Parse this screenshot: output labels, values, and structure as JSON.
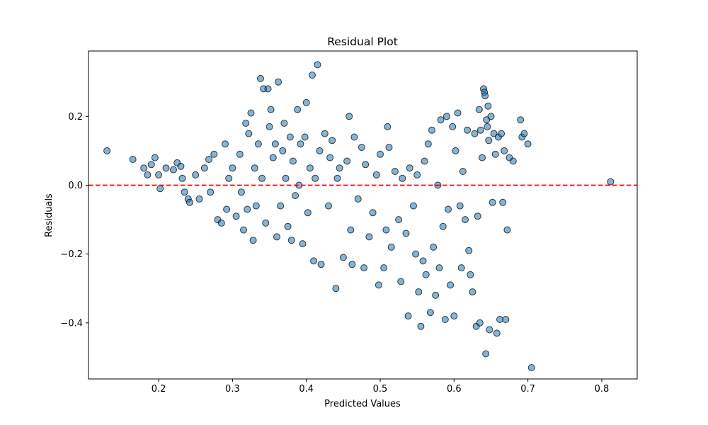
{
  "chart_data": {
    "type": "scatter",
    "title": "Residual Plot",
    "xlabel": "Predicted Values",
    "ylabel": "Residuals",
    "xlim": [
      0.105,
      0.848
    ],
    "ylim": [
      -0.563,
      0.39
    ],
    "xticks": [
      0.2,
      0.3,
      0.4,
      0.5,
      0.6,
      0.7,
      0.8
    ],
    "xtick_labels": [
      "0.2",
      "0.3",
      "0.4",
      "0.5",
      "0.6",
      "0.7",
      "0.8"
    ],
    "yticks": [
      -0.4,
      -0.2,
      0.0,
      0.2
    ],
    "ytick_labels": [
      "−0.4",
      "−0.2",
      "0.0",
      "0.2"
    ],
    "reference_line": {
      "y": 0.0,
      "style": "dashed",
      "color": "#ff0000"
    },
    "marker_color": "#1f77b4",
    "marker_edge_color": "#000000",
    "marker_alpha": 0.55,
    "grid": false,
    "legend": "none",
    "series": [
      {
        "points": [
          [
            0.13,
            0.1
          ],
          [
            0.165,
            0.075
          ],
          [
            0.18,
            0.05
          ],
          [
            0.185,
            0.03
          ],
          [
            0.19,
            0.06
          ],
          [
            0.195,
            0.08
          ],
          [
            0.2,
            0.03
          ],
          [
            0.202,
            -0.01
          ],
          [
            0.21,
            0.05
          ],
          [
            0.22,
            0.045
          ],
          [
            0.225,
            0.065
          ],
          [
            0.23,
            0.055
          ],
          [
            0.232,
            0.02
          ],
          [
            0.235,
            -0.02
          ],
          [
            0.24,
            -0.04
          ],
          [
            0.242,
            -0.05
          ],
          [
            0.25,
            0.03
          ],
          [
            0.255,
            -0.04
          ],
          [
            0.262,
            0.05
          ],
          [
            0.268,
            0.075
          ],
          [
            0.27,
            -0.02
          ],
          [
            0.275,
            0.09
          ],
          [
            0.28,
            -0.1
          ],
          [
            0.285,
            -0.11
          ],
          [
            0.29,
            0.12
          ],
          [
            0.292,
            -0.07
          ],
          [
            0.295,
            0.02
          ],
          [
            0.3,
            0.05
          ],
          [
            0.305,
            -0.09
          ],
          [
            0.31,
            0.09
          ],
          [
            0.312,
            -0.02
          ],
          [
            0.315,
            -0.13
          ],
          [
            0.318,
            0.18
          ],
          [
            0.32,
            -0.07
          ],
          [
            0.322,
            0.15
          ],
          [
            0.325,
            0.21
          ],
          [
            0.328,
            -0.16
          ],
          [
            0.33,
            0.05
          ],
          [
            0.332,
            -0.06
          ],
          [
            0.335,
            0.12
          ],
          [
            0.338,
            0.31
          ],
          [
            0.34,
            0.02
          ],
          [
            0.342,
            0.28
          ],
          [
            0.345,
            -0.11
          ],
          [
            0.348,
            0.28
          ],
          [
            0.35,
            0.17
          ],
          [
            0.352,
            0.22
          ],
          [
            0.355,
            0.08
          ],
          [
            0.358,
            0.12
          ],
          [
            0.36,
            -0.15
          ],
          [
            0.362,
            0.3
          ],
          [
            0.365,
            -0.06
          ],
          [
            0.368,
            0.1
          ],
          [
            0.37,
            0.18
          ],
          [
            0.372,
            0.02
          ],
          [
            0.375,
            -0.12
          ],
          [
            0.378,
            0.14
          ],
          [
            0.38,
            -0.16
          ],
          [
            0.382,
            0.07
          ],
          [
            0.385,
            -0.03
          ],
          [
            0.388,
            0.22
          ],
          [
            0.39,
            0.0
          ],
          [
            0.392,
            0.12
          ],
          [
            0.395,
            -0.17
          ],
          [
            0.398,
            0.14
          ],
          [
            0.4,
            0.24
          ],
          [
            0.402,
            -0.08
          ],
          [
            0.405,
            0.05
          ],
          [
            0.408,
            0.32
          ],
          [
            0.41,
            -0.22
          ],
          [
            0.412,
            0.02
          ],
          [
            0.415,
            0.35
          ],
          [
            0.418,
            0.1
          ],
          [
            0.42,
            -0.23
          ],
          [
            0.425,
            0.15
          ],
          [
            0.43,
            -0.06
          ],
          [
            0.432,
            0.08
          ],
          [
            0.435,
            0.13
          ],
          [
            0.44,
            -0.3
          ],
          [
            0.442,
            0.02
          ],
          [
            0.445,
            0.05
          ],
          [
            0.45,
            -0.21
          ],
          [
            0.455,
            0.07
          ],
          [
            0.458,
            0.2
          ],
          [
            0.46,
            -0.13
          ],
          [
            0.462,
            -0.23
          ],
          [
            0.465,
            0.14
          ],
          [
            0.47,
            -0.04
          ],
          [
            0.475,
            0.11
          ],
          [
            0.478,
            -0.24
          ],
          [
            0.48,
            0.06
          ],
          [
            0.485,
            -0.15
          ],
          [
            0.49,
            -0.08
          ],
          [
            0.495,
            0.03
          ],
          [
            0.498,
            -0.29
          ],
          [
            0.5,
            0.09
          ],
          [
            0.505,
            -0.24
          ],
          [
            0.508,
            -0.13
          ],
          [
            0.51,
            0.17
          ],
          [
            0.512,
            0.11
          ],
          [
            0.515,
            -0.18
          ],
          [
            0.52,
            0.04
          ],
          [
            0.525,
            -0.1
          ],
          [
            0.528,
            -0.28
          ],
          [
            0.53,
            0.02
          ],
          [
            0.535,
            -0.14
          ],
          [
            0.538,
            -0.38
          ],
          [
            0.54,
            0.05
          ],
          [
            0.545,
            -0.06
          ],
          [
            0.548,
            -0.2
          ],
          [
            0.55,
            0.03
          ],
          [
            0.552,
            -0.31
          ],
          [
            0.555,
            -0.41
          ],
          [
            0.558,
            -0.22
          ],
          [
            0.56,
            0.07
          ],
          [
            0.562,
            -0.26
          ],
          [
            0.565,
            0.12
          ],
          [
            0.568,
            -0.37
          ],
          [
            0.57,
            0.16
          ],
          [
            0.572,
            -0.18
          ],
          [
            0.575,
            -0.32
          ],
          [
            0.578,
            0.0
          ],
          [
            0.58,
            -0.24
          ],
          [
            0.582,
            0.19
          ],
          [
            0.585,
            -0.12
          ],
          [
            0.588,
            -0.39
          ],
          [
            0.59,
            0.2
          ],
          [
            0.592,
            -0.07
          ],
          [
            0.595,
            -0.29
          ],
          [
            0.598,
            0.17
          ],
          [
            0.6,
            -0.38
          ],
          [
            0.602,
            0.1
          ],
          [
            0.605,
            0.21
          ],
          [
            0.608,
            -0.06
          ],
          [
            0.61,
            -0.24
          ],
          [
            0.612,
            0.04
          ],
          [
            0.615,
            -0.1
          ],
          [
            0.618,
            0.16
          ],
          [
            0.62,
            -0.19
          ],
          [
            0.622,
            -0.26
          ],
          [
            0.625,
            -0.31
          ],
          [
            0.628,
            0.15
          ],
          [
            0.63,
            -0.41
          ],
          [
            0.632,
            -0.09
          ],
          [
            0.634,
            0.22
          ],
          [
            0.635,
            -0.4
          ],
          [
            0.636,
            0.16
          ],
          [
            0.638,
            0.08
          ],
          [
            0.64,
            0.28
          ],
          [
            0.641,
            0.27
          ],
          [
            0.642,
            0.26
          ],
          [
            0.643,
            -0.49
          ],
          [
            0.644,
            0.19
          ],
          [
            0.645,
            0.17
          ],
          [
            0.646,
            0.23
          ],
          [
            0.647,
            0.13
          ],
          [
            0.648,
            -0.42
          ],
          [
            0.65,
            0.2
          ],
          [
            0.652,
            -0.05
          ],
          [
            0.654,
            0.15
          ],
          [
            0.656,
            0.09
          ],
          [
            0.658,
            -0.43
          ],
          [
            0.66,
            0.14
          ],
          [
            0.662,
            -0.39
          ],
          [
            0.664,
            0.15
          ],
          [
            0.666,
            -0.05
          ],
          [
            0.668,
            0.1
          ],
          [
            0.67,
            -0.39
          ],
          [
            0.672,
            -0.13
          ],
          [
            0.675,
            0.08
          ],
          [
            0.68,
            0.07
          ],
          [
            0.69,
            0.19
          ],
          [
            0.692,
            0.14
          ],
          [
            0.695,
            0.15
          ],
          [
            0.7,
            0.12
          ],
          [
            0.705,
            -0.53
          ],
          [
            0.812,
            0.01
          ]
        ]
      }
    ]
  }
}
